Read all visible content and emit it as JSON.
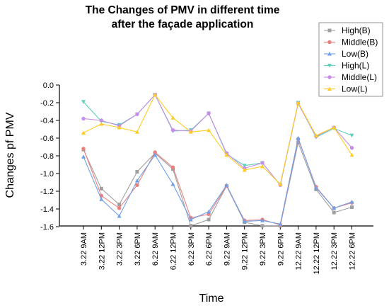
{
  "chart_data": {
    "type": "line",
    "title_lines": [
      "The Changes of PMV in different time",
      "after the façade application"
    ],
    "xlabel": "Time",
    "ylabel": "Changes pf PMV",
    "categories": [
      "3.22  9AM",
      "3.22  12PM",
      "3.22  3PM",
      "3.22  6PM",
      "6.22  9AM",
      "6.22  12PM",
      "6.22  3PM",
      "6.22  6PM",
      "9.22  9AM",
      "9.22  12PM",
      "9.22  3PM",
      "9.22  6PM",
      "12.22  9AM",
      "12.22  12PM",
      "12.22  3PM",
      "12.22  6PM"
    ],
    "ylim": [
      -1.65,
      0.0
    ],
    "yticks": [
      "0.0",
      "-0.2",
      "-0.4",
      "-0.6",
      "-0.8",
      "-1.0",
      "-1.2",
      "-1.4",
      "-1.6"
    ],
    "grid": false,
    "legend_position": "top-right",
    "series": [
      {
        "name": "High(B)",
        "color": "#a0a0a0",
        "marker": "square",
        "values": [
          -0.73,
          -1.17,
          -1.35,
          -0.98,
          -0.77,
          -0.95,
          -1.59,
          -1.52,
          -1.14,
          -1.55,
          -1.59,
          -1.59,
          -0.65,
          -1.18,
          -1.44,
          -1.38
        ]
      },
      {
        "name": "Middle(B)",
        "color": "#e88080",
        "marker": "circle",
        "values": [
          -0.72,
          -1.25,
          -1.39,
          -1.13,
          -0.76,
          -0.93,
          -1.5,
          -1.46,
          -1.14,
          -1.53,
          -1.52,
          -1.58,
          -0.61,
          -1.15,
          -1.39,
          -1.33
        ]
      },
      {
        "name": "Low(B)",
        "color": "#6fa0e8",
        "marker": "triangle-up",
        "values": [
          -0.81,
          -1.29,
          -1.48,
          -1.08,
          -0.79,
          -1.12,
          -1.52,
          -1.43,
          -1.13,
          -1.54,
          -1.53,
          -1.57,
          -0.6,
          -1.16,
          -1.39,
          -1.32
        ]
      },
      {
        "name": "High(L)",
        "color": "#5ecfb8",
        "marker": "triangle-down",
        "values": [
          -0.19,
          -0.41,
          -0.45,
          -0.33,
          -0.11,
          -0.52,
          -0.51,
          -0.32,
          -0.78,
          -0.91,
          -0.88,
          -1.13,
          -0.2,
          -0.59,
          -0.49,
          -0.57
        ]
      },
      {
        "name": "Middle(L)",
        "color": "#c78de8",
        "marker": "circle",
        "values": [
          -0.38,
          -0.4,
          -0.46,
          -0.33,
          -0.11,
          -0.51,
          -0.52,
          -0.32,
          -0.77,
          -0.94,
          -0.88,
          -1.13,
          -0.21,
          -0.58,
          -0.48,
          -0.71
        ]
      },
      {
        "name": "Low(L)",
        "color": "#ffcc22",
        "marker": "triangle-up",
        "values": [
          -0.54,
          -0.44,
          -0.48,
          -0.53,
          -0.11,
          -0.37,
          -0.53,
          -0.51,
          -0.79,
          -0.96,
          -0.92,
          -1.12,
          -0.2,
          -0.57,
          -0.48,
          -0.79
        ]
      }
    ]
  }
}
